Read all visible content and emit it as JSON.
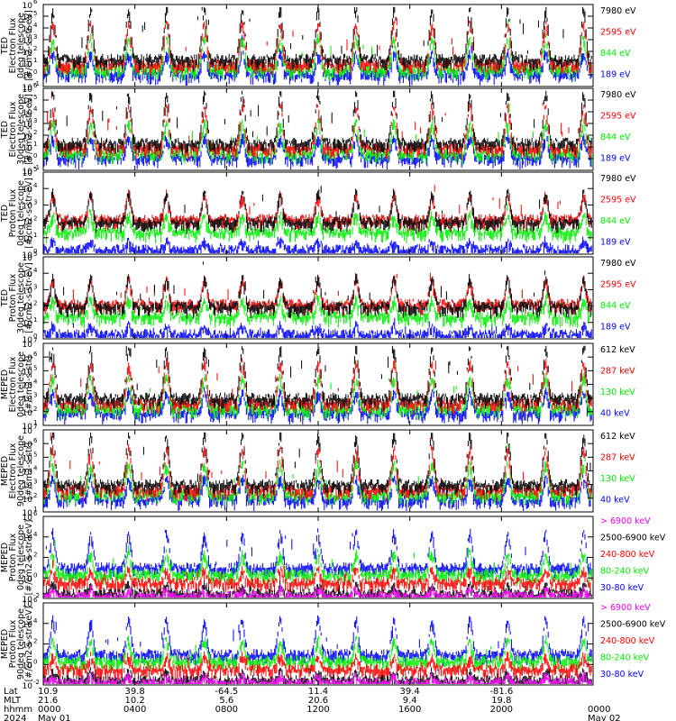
{
  "colors": {
    "blue": "#0000ff",
    "red": "#ff0000",
    "green": "#00ee00",
    "black": "#000000",
    "magenta": "#ff00ff"
  },
  "time_axis": {
    "row_labels": [
      "Lat",
      "MLT",
      "hhmm",
      "2024"
    ],
    "ticks": [
      {
        "time": "0000",
        "lat": "10.9",
        "mlt": "21.6",
        "date": "May 01"
      },
      {
        "time": "0400",
        "lat": "39.8",
        "mlt": "10.2",
        "date": ""
      },
      {
        "time": "0800",
        "lat": "-64.5",
        "mlt": "5.6",
        "date": ""
      },
      {
        "time": "1200",
        "lat": "11.4",
        "mlt": "20.6",
        "date": ""
      },
      {
        "time": "1600",
        "lat": "39.4",
        "mlt": "9.4",
        "date": ""
      },
      {
        "time": "2000",
        "lat": "-81.6",
        "mlt": "19.8",
        "date": ""
      },
      {
        "time": "0000",
        "lat": "",
        "mlt": "",
        "date": "May 02"
      }
    ]
  },
  "chart_data": [
    {
      "type": "line",
      "ylabel": [
        "TED",
        "Electron Flux",
        "0deg telescope",
        "[#/cm2-s-str-eV]"
      ],
      "yscale": "log",
      "ylim_exp": [
        -1,
        6
      ],
      "ytick_exps": [
        -1,
        0,
        1,
        2,
        3,
        4,
        5,
        6
      ],
      "legend": [
        {
          "label": "7980 eV",
          "color": "#000000"
        },
        {
          "label": "2595 eV",
          "color": "#ff0000"
        },
        {
          "label": "844 eV",
          "color": "#00ee00"
        },
        {
          "label": "189 eV",
          "color": "#0000ff"
        }
      ]
    },
    {
      "type": "line",
      "ylabel": [
        "TED",
        "Electron Flux",
        "30deg telescope",
        "[#/cm2-s-str-eV]"
      ],
      "yscale": "log",
      "ylim_exp": [
        -1,
        6
      ],
      "ytick_exps": [
        -1,
        0,
        1,
        2,
        3,
        4,
        5,
        6
      ],
      "legend": [
        {
          "label": "7980 eV",
          "color": "#000000"
        },
        {
          "label": "2595 eV",
          "color": "#ff0000"
        },
        {
          "label": "844 eV",
          "color": "#00ee00"
        },
        {
          "label": "189 eV",
          "color": "#0000ff"
        }
      ]
    },
    {
      "type": "line",
      "ylabel": [
        "TED",
        "Proton Flux",
        "0deg telescope",
        "[#/cm2-s-str-eV]"
      ],
      "yscale": "log",
      "ylim_exp": [
        0,
        5
      ],
      "ytick_exps": [
        0,
        1,
        2,
        3,
        4,
        5
      ],
      "legend": [
        {
          "label": "7980 eV",
          "color": "#000000"
        },
        {
          "label": "2595 eV",
          "color": "#ff0000"
        },
        {
          "label": "844 eV",
          "color": "#00ee00"
        },
        {
          "label": "189 eV",
          "color": "#0000ff"
        }
      ]
    },
    {
      "type": "line",
      "ylabel": [
        "TED",
        "Proton Flux",
        "30deg telescope",
        "[#/cm2-s-str-eV]"
      ],
      "yscale": "log",
      "ylim_exp": [
        0,
        5
      ],
      "ytick_exps": [
        0,
        1,
        2,
        3,
        4,
        5
      ],
      "legend": [
        {
          "label": "7980 eV",
          "color": "#000000"
        },
        {
          "label": "2595 eV",
          "color": "#ff0000"
        },
        {
          "label": "844 eV",
          "color": "#00ee00"
        },
        {
          "label": "189 eV",
          "color": "#0000ff"
        }
      ]
    },
    {
      "type": "line",
      "ylabel": [
        "MEPED",
        "Electron Flux",
        "0deg telescope",
        "[#/cm2-s-str]"
      ],
      "yscale": "log",
      "ylim_exp": [
        1,
        7
      ],
      "ytick_exps": [
        1,
        2,
        3,
        4,
        5,
        6,
        7
      ],
      "legend": [
        {
          "label": "612 keV",
          "color": "#000000"
        },
        {
          "label": "287 keV",
          "color": "#ff0000"
        },
        {
          "label": "130 keV",
          "color": "#00ee00"
        },
        {
          "label": "40 keV",
          "color": "#0000ff"
        }
      ]
    },
    {
      "type": "line",
      "ylabel": [
        "MEPED",
        "Electron Flux",
        "90deg telescope",
        "[#/cm2-s-str]"
      ],
      "yscale": "log",
      "ylim_exp": [
        1,
        7
      ],
      "ytick_exps": [
        1,
        2,
        3,
        4,
        5,
        6,
        7
      ],
      "legend": [
        {
          "label": "612 keV",
          "color": "#000000"
        },
        {
          "label": "287 keV",
          "color": "#ff0000"
        },
        {
          "label": "130 keV",
          "color": "#00ee00"
        },
        {
          "label": "40 keV",
          "color": "#0000ff"
        }
      ]
    },
    {
      "type": "line",
      "ylabel": [
        "MEPED",
        "Proton Flux",
        "0deg telescope",
        "[#/cm2-s-str-keV]"
      ],
      "yscale": "log",
      "ylim_exp": [
        -2,
        6
      ],
      "ytick_exps": [
        -2,
        0,
        2,
        4,
        6
      ],
      "legend": [
        {
          "label": "> 6900 keV",
          "color": "#ff00ff"
        },
        {
          "label": "2500-6900 keV",
          "color": "#000000"
        },
        {
          "label": "240-800 keV",
          "color": "#ff0000"
        },
        {
          "label": "80-240 keV",
          "color": "#00ee00"
        },
        {
          "label": "30-80 keV",
          "color": "#0000ff"
        }
      ]
    },
    {
      "type": "line",
      "ylabel": [
        "MEPED",
        "Proton Flux",
        "90deg telescope",
        "[#/cm2-s-str-keV]"
      ],
      "yscale": "log",
      "ylim_exp": [
        -2,
        6
      ],
      "ytick_exps": [
        -2,
        0,
        2,
        4,
        6
      ],
      "legend": [
        {
          "label": "> 6900 keV",
          "color": "#ff00ff"
        },
        {
          "label": "2500-6900 keV",
          "color": "#000000"
        },
        {
          "label": "240-800 keV",
          "color": "#ff0000"
        },
        {
          "label": "80-240 keV",
          "color": "#00ee00"
        },
        {
          "label": "30-80 keV",
          "color": "#0000ff"
        }
      ]
    }
  ]
}
